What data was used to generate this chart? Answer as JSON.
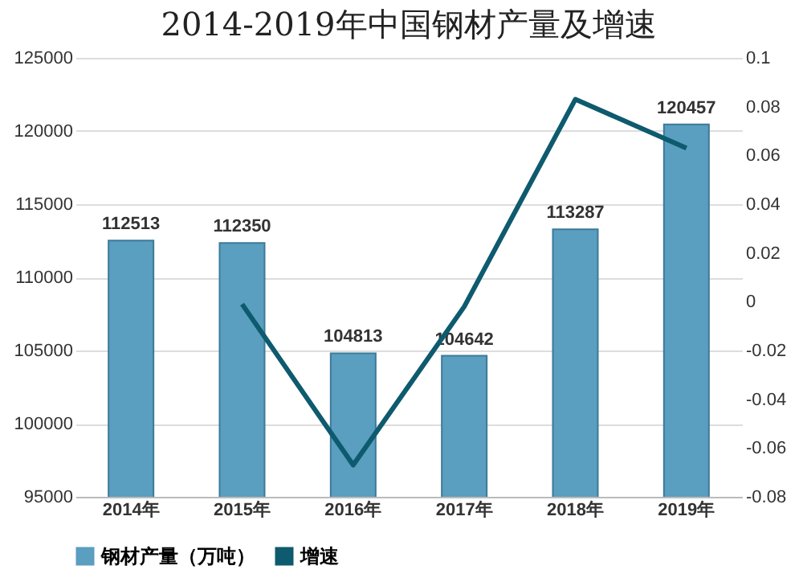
{
  "chart_data": {
    "type": "bar",
    "title": "2014-2019年中国钢材产量及增速",
    "categories": [
      "2014年",
      "2015年",
      "2016年",
      "2017年",
      "2018年",
      "2019年"
    ],
    "series": [
      {
        "name": "钢材产量（万吨）",
        "color": "#5a9ec0",
        "values": [
          112513,
          112350,
          104813,
          104642,
          113287,
          120457
        ],
        "value_labels": [
          "112513",
          "112350",
          "104813",
          "104642",
          "113287",
          "120457"
        ]
      },
      {
        "name": "增速",
        "type": "line",
        "axis": "y2",
        "color": "#0e5a6e",
        "values": [
          null,
          -0.001,
          -0.067,
          -0.002,
          0.083,
          0.063
        ]
      }
    ],
    "ylim": [
      95000,
      125000
    ],
    "yticks": [
      95000,
      100000,
      105000,
      110000,
      115000,
      120000,
      125000
    ],
    "y2lim": [
      -0.08,
      0.1
    ],
    "y2ticks": [
      -0.08,
      -0.06,
      -0.04,
      -0.02,
      0,
      0.02,
      0.04,
      0.06,
      0.08,
      0.1
    ],
    "grid": "y",
    "legend": "bottom",
    "marker": "none",
    "line_style": "solid"
  }
}
